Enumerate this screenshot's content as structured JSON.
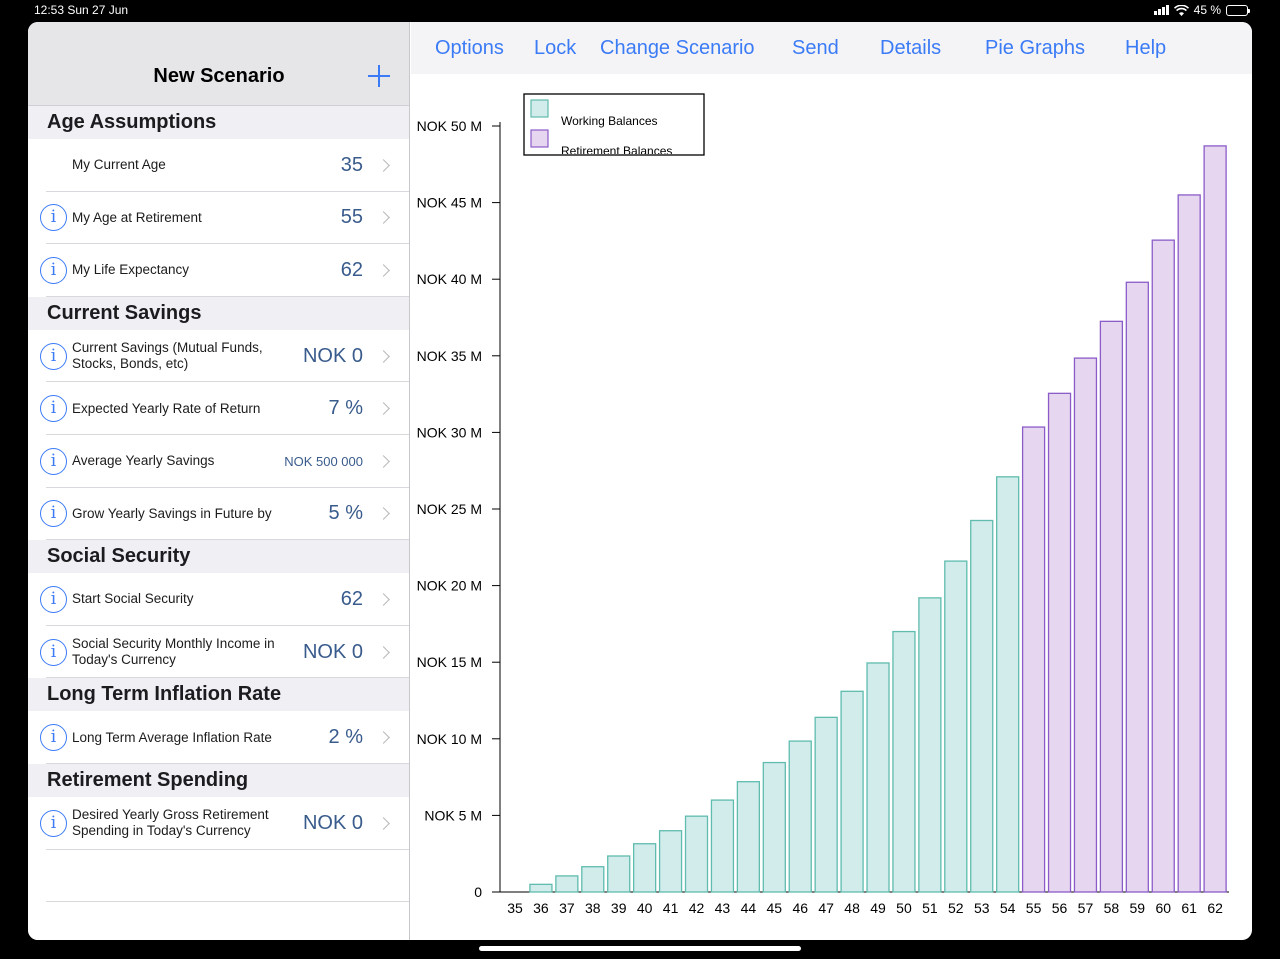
{
  "status": {
    "time_date": "12:53   Sun 27 Jun",
    "battery": "45 %",
    "battery_level": 0.45
  },
  "sidebar": {
    "title": "New Scenario",
    "sections": [
      {
        "title": "Age Assumptions",
        "rows": [
          {
            "label": "My Current Age",
            "value": "35",
            "info": false
          },
          {
            "label": "My Age at Retirement",
            "value": "55",
            "info": true
          },
          {
            "label": "My Life Expectancy",
            "value": "62",
            "info": true
          }
        ]
      },
      {
        "title": "Current Savings",
        "rows": [
          {
            "label": "Current Savings (Mutual Funds, Stocks, Bonds, etc)",
            "value": "NOK 0",
            "info": true
          },
          {
            "label": "Expected Yearly Rate of Return",
            "value": "7 %",
            "info": true
          },
          {
            "label": "Average Yearly Savings",
            "value": "NOK 500 000",
            "info": true,
            "small": true
          },
          {
            "label": "Grow Yearly Savings in Future by",
            "value": "5 %",
            "info": true
          }
        ]
      },
      {
        "title": "Social Security",
        "rows": [
          {
            "label": "Start Social Security",
            "value": "62",
            "info": true
          },
          {
            "label": "Social Security Monthly Income in Today's Currency",
            "value": "NOK 0",
            "info": true
          }
        ]
      },
      {
        "title": "Long Term Inflation Rate",
        "rows": [
          {
            "label": "Long Term Average Inflation Rate",
            "value": "2 %",
            "info": true
          }
        ]
      },
      {
        "title": "Retirement Spending",
        "rows": [
          {
            "label": "Desired Yearly Gross Retirement Spending in Today's Currency",
            "value": "NOK 0",
            "info": true
          }
        ]
      }
    ]
  },
  "toolbar": {
    "options": "Options",
    "lock": "Lock",
    "change_scenario": "Change Scenario",
    "send": "Send",
    "details": "Details",
    "pie_graphs": "Pie Graphs",
    "help": "Help"
  },
  "colors": {
    "accent": "#3b7bf6",
    "working_fill": "#d2ecec",
    "working_stroke": "#5fbcae",
    "retirement_fill": "#e7d6ef",
    "retirement_stroke": "#8b5cc8"
  },
  "chart_data": {
    "type": "bar",
    "legend_position": "top-left",
    "grid": false,
    "ylim": [
      0,
      50
    ],
    "y_ticks": [
      {
        "value": 0,
        "label": "0"
      },
      {
        "value": 5,
        "label": "NOK 5 M"
      },
      {
        "value": 10,
        "label": "NOK 10 M"
      },
      {
        "value": 15,
        "label": "NOK 15 M"
      },
      {
        "value": 20,
        "label": "NOK 20 M"
      },
      {
        "value": 25,
        "label": "NOK 25 M"
      },
      {
        "value": 30,
        "label": "NOK 30 M"
      },
      {
        "value": 35,
        "label": "NOK 35 M"
      },
      {
        "value": 40,
        "label": "NOK 40 M"
      },
      {
        "value": 45,
        "label": "NOK 45 M"
      },
      {
        "value": 50,
        "label": "NOK 50 M"
      }
    ],
    "categories": [
      "35",
      "36",
      "37",
      "38",
      "39",
      "40",
      "41",
      "42",
      "43",
      "44",
      "45",
      "46",
      "47",
      "48",
      "49",
      "50",
      "51",
      "52",
      "53",
      "54",
      "55",
      "56",
      "57",
      "58",
      "59",
      "60",
      "61",
      "62"
    ],
    "series": [
      {
        "name": "Working Balances",
        "values": [
          0,
          0.5,
          1.05,
          1.65,
          2.35,
          3.15,
          4.0,
          4.95,
          6.0,
          7.2,
          8.45,
          9.85,
          11.4,
          13.1,
          14.95,
          17.0,
          19.2,
          21.6,
          24.25,
          27.1,
          null,
          null,
          null,
          null,
          null,
          null,
          null,
          null
        ]
      },
      {
        "name": "Retirement Balances",
        "values": [
          null,
          null,
          null,
          null,
          null,
          null,
          null,
          null,
          null,
          null,
          null,
          null,
          null,
          null,
          null,
          null,
          null,
          null,
          null,
          null,
          30.35,
          32.55,
          34.85,
          37.25,
          39.8,
          42.55,
          45.5,
          48.7
        ]
      }
    ]
  }
}
